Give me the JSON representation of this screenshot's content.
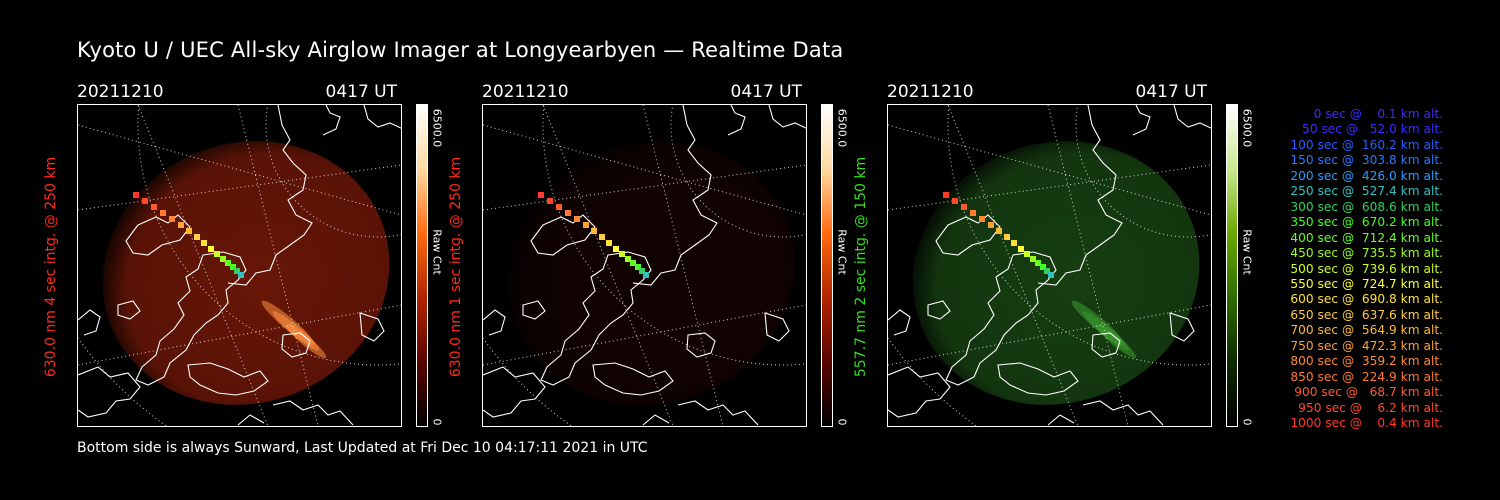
{
  "title": "Kyoto U / UEC All-sky Airglow Imager at Longyearbyen — Realtime Data",
  "footer": "Bottom side is always Sunward, Last Updated at Fri Dec 10 04:17:11 2021 in UTC",
  "panels": [
    {
      "date": "20211210",
      "time": "0417 UT",
      "ylabel": "630.0 nm 4 sec intg. @ 250 km",
      "label_color": "#ff2a1a",
      "colorbar_max": "6500.0",
      "colorbar_unit": "Raw Cnt",
      "colorbar_zero": "0",
      "colorbar_gradient": [
        "#000000",
        "#5a0500",
        "#b22400",
        "#ff6a10",
        "#ffd9a0",
        "#ffffff"
      ],
      "glow_color": "#7a1a08",
      "glow_level": 0.85
    },
    {
      "date": "20211210",
      "time": "0417 UT",
      "ylabel": "630.0 nm 1 sec intg. @ 250 km",
      "label_color": "#ff2a1a",
      "colorbar_max": "6500.0",
      "colorbar_unit": "Raw Cnt",
      "colorbar_zero": "0",
      "colorbar_gradient": [
        "#000000",
        "#5a0500",
        "#b22400",
        "#ff6a10",
        "#ffd9a0",
        "#ffffff"
      ],
      "glow_color": "#2a0703",
      "glow_level": 0.4
    },
    {
      "date": "20211210",
      "time": "0417 UT",
      "ylabel": "557.7 nm 2 sec intg. @ 150 km",
      "label_color": "#33dd22",
      "colorbar_max": "6500.0",
      "colorbar_unit": "Raw Cnt",
      "colorbar_zero": "0",
      "colorbar_gradient": [
        "#000000",
        "#0d2a00",
        "#2f6b00",
        "#6aa800",
        "#c9e890",
        "#ffffff"
      ],
      "glow_color": "#1d5316",
      "glow_level": 0.75
    }
  ],
  "legend": [
    {
      "text": "   0 sec @    0.1 km alt.",
      "color": "#3a2cff"
    },
    {
      "text": "  50 sec @   52.0 km alt.",
      "color": "#3a2cff"
    },
    {
      "text": " 100 sec @  160.2 km alt.",
      "color": "#2a5cff"
    },
    {
      "text": " 150 sec @  303.8 km alt.",
      "color": "#2a78ff"
    },
    {
      "text": " 200 sec @  426.0 km alt.",
      "color": "#2a9cff"
    },
    {
      "text": " 250 sec @  527.4 km alt.",
      "color": "#33c0c0"
    },
    {
      "text": " 300 sec @  608.6 km alt.",
      "color": "#33d060"
    },
    {
      "text": " 350 sec @  670.2 km alt.",
      "color": "#44ff22"
    },
    {
      "text": " 400 sec @  712.4 km alt.",
      "color": "#66ff22"
    },
    {
      "text": " 450 sec @  735.5 km alt.",
      "color": "#99ff22"
    },
    {
      "text": " 500 sec @  739.6 km alt.",
      "color": "#ccff22"
    },
    {
      "text": " 550 sec @  724.7 km alt.",
      "color": "#ffff33"
    },
    {
      "text": " 600 sec @  690.8 km alt.",
      "color": "#ffe033"
    },
    {
      "text": " 650 sec @  637.6 km alt.",
      "color": "#ffcc44"
    },
    {
      "text": " 700 sec @  564.9 km alt.",
      "color": "#ffb833"
    },
    {
      "text": " 750 sec @  472.3 km alt.",
      "color": "#ffa033"
    },
    {
      "text": " 800 sec @  359.2 km alt.",
      "color": "#ff8a33"
    },
    {
      "text": " 850 sec @  224.9 km alt.",
      "color": "#ff7a33"
    },
    {
      "text": " 900 sec @   68.7 km alt.",
      "color": "#ff5a2a"
    },
    {
      "text": " 950 sec @    6.2 km alt.",
      "color": "#ff4a2a"
    },
    {
      "text": "1000 sec @    0.4 km alt.",
      "color": "#ff3a2a"
    }
  ]
}
